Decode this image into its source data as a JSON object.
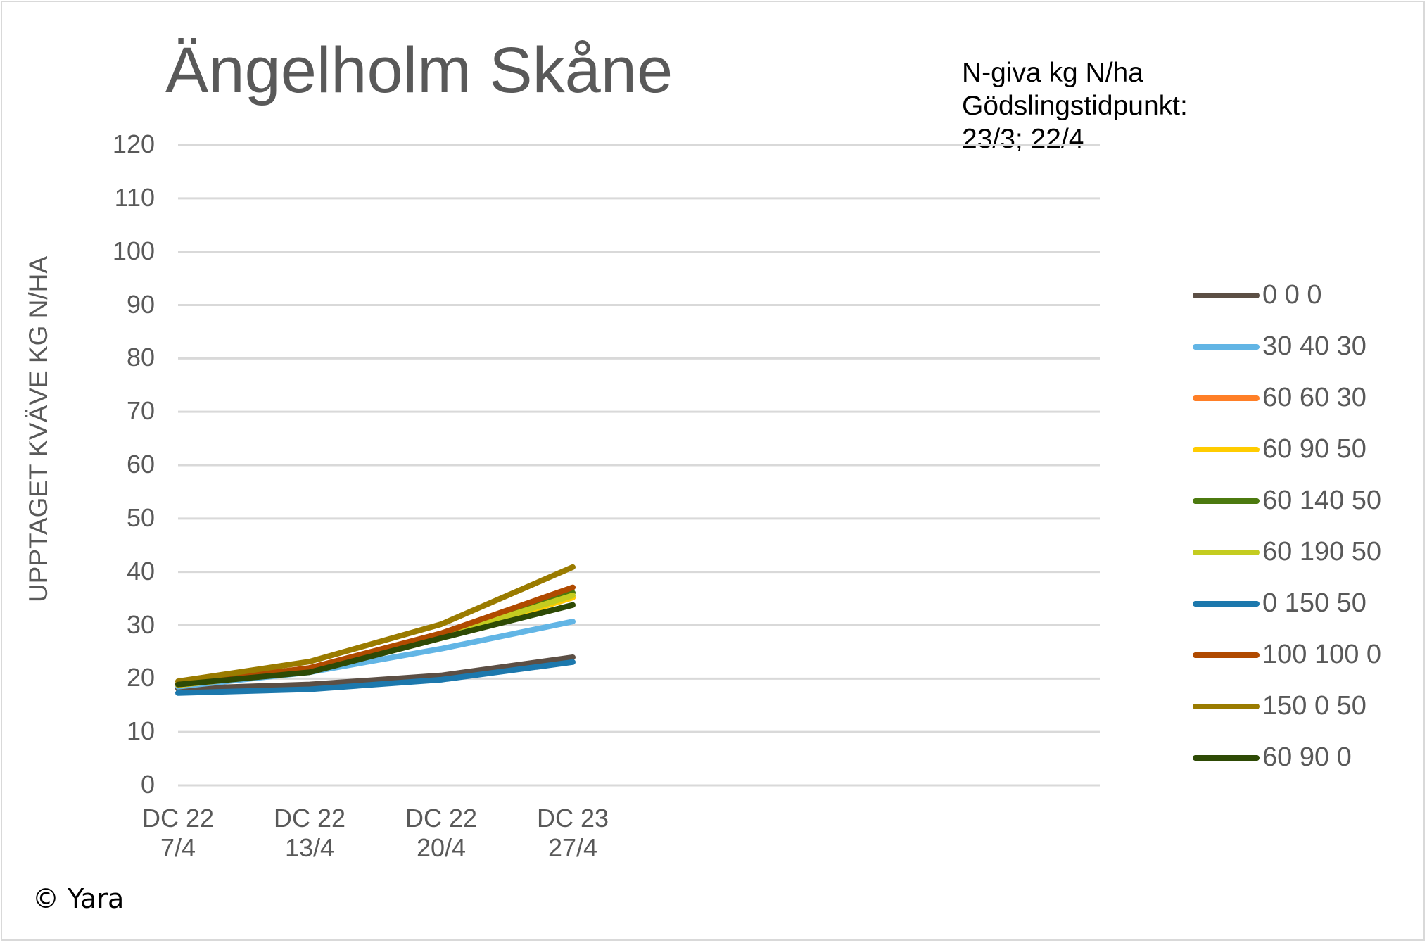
{
  "chart_data": {
    "type": "line",
    "title": "Ängelholm Skåne",
    "annotation": "N-giva kg N/ha\nGödslingstidpunkt:\n23/3; 22/4",
    "xlabel": "",
    "ylabel": "UPPTAGET KVÄVE KG N/HA",
    "ylim": [
      0,
      120
    ],
    "yticks": [
      0,
      10,
      20,
      30,
      40,
      50,
      60,
      70,
      80,
      90,
      100,
      110,
      120
    ],
    "grid": true,
    "legend_position": "right",
    "categories": [
      "DC 22\n7/4",
      "DC 22\n13/4",
      "DC 22\n20/4",
      "DC 23\n27/4"
    ],
    "series": [
      {
        "name": "0 0 0",
        "color": "#5c4f45",
        "values": [
          18.1,
          18.9,
          20.6,
          24.0
        ]
      },
      {
        "name": "30 40 30",
        "color": "#62b5e5",
        "values": [
          18.5,
          21.2,
          25.6,
          30.7
        ]
      },
      {
        "name": "60 60 30",
        "color": "#ff7f27",
        "values": [
          18.8,
          22.0,
          27.8,
          35.2
        ]
      },
      {
        "name": "60 90 50",
        "color": "#ffcc00",
        "values": [
          18.8,
          21.4,
          27.6,
          35.2
        ]
      },
      {
        "name": "60 140 50",
        "color": "#4c7a0f",
        "values": [
          18.9,
          21.4,
          27.8,
          36.1
        ]
      },
      {
        "name": "60 190 50",
        "color": "#c4cc20",
        "values": [
          18.9,
          21.4,
          27.8,
          35.6
        ]
      },
      {
        "name": "0 150 50",
        "color": "#1c78ad",
        "values": [
          17.3,
          18.0,
          19.8,
          23.1
        ]
      },
      {
        "name": "100 100 0",
        "color": "#b04a00",
        "values": [
          19.0,
          22.0,
          28.5,
          37.1
        ]
      },
      {
        "name": "150 0 50",
        "color": "#9a7b00",
        "values": [
          19.5,
          23.2,
          30.2,
          40.9
        ]
      },
      {
        "name": "60 90 0",
        "color": "#2e4a05",
        "values": [
          18.9,
          21.2,
          27.6,
          33.8
        ]
      }
    ]
  },
  "footer": {
    "copyright": "© Yara"
  }
}
